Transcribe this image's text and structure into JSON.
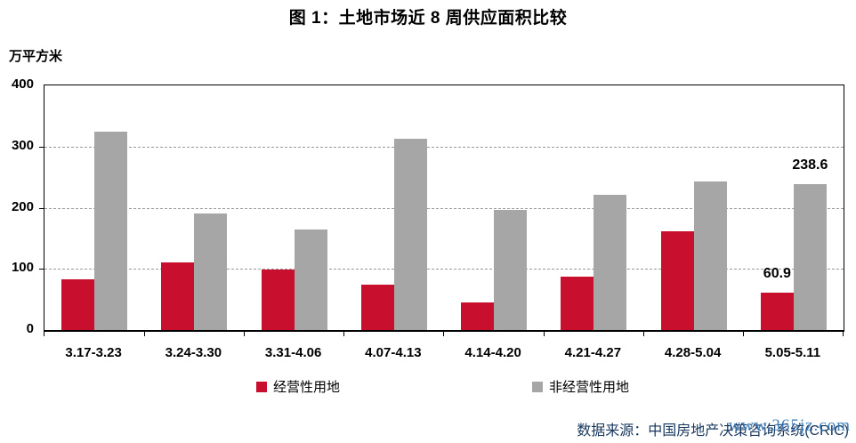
{
  "title": "图 1：土地市场近 8 周供应面积比较",
  "y_unit": "万平方米",
  "chart_data": {
    "type": "bar",
    "categories": [
      "3.17-3.23",
      "3.24-3.30",
      "3.31-4.06",
      "4.07-4.13",
      "4.14-4.20",
      "4.21-4.27",
      "4.28-5.04",
      "5.05-5.11"
    ],
    "series": [
      {
        "name": "经营性用地",
        "color": "#c8102e",
        "values": [
          83,
          110,
          99,
          74,
          45,
          88,
          161,
          60.9
        ]
      },
      {
        "name": "非经营性用地",
        "color": "#a6a6a6",
        "values": [
          324,
          190,
          164,
          313,
          196,
          221,
          243,
          238.6
        ]
      }
    ],
    "title": "图 1：土地市场近 8 周供应面积比较",
    "xlabel": "",
    "ylabel": "万平方米",
    "ylim": [
      0,
      400
    ],
    "y_ticks": [
      "0",
      "100",
      "200",
      "300",
      "400"
    ],
    "grid": "horizontal-dashed",
    "legend_position": "bottom",
    "data_labels": [
      {
        "series": 0,
        "index": 7,
        "text": "60.9"
      },
      {
        "series": 1,
        "index": 7,
        "text": "238.6"
      }
    ]
  },
  "legend": {
    "items": [
      {
        "label": "经营性用地",
        "color": "#c8102e"
      },
      {
        "label": "非经营性用地",
        "color": "#a6a6a6"
      }
    ]
  },
  "source": {
    "text": "数据来源：中国房地产决策咨询系统(CRIC)",
    "watermark": "www.365jz.com"
  }
}
